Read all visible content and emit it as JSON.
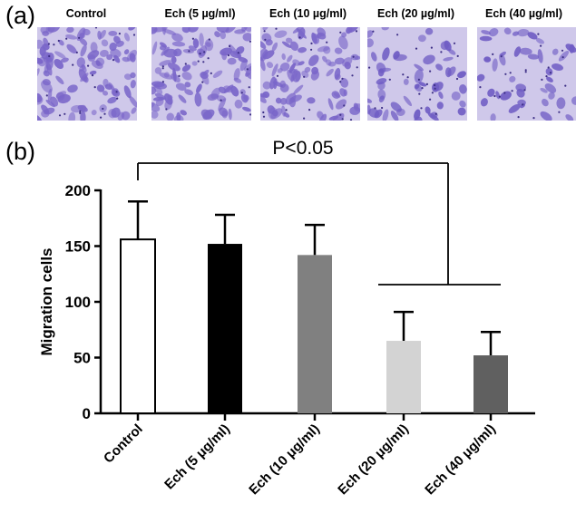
{
  "panel_labels": {
    "a": "(a)",
    "b": "(b)"
  },
  "micrographs": [
    {
      "title": "Control",
      "density": 1.0,
      "stain": "#7a66c9"
    },
    {
      "title": "Ech (5 µg/ml)",
      "density": 0.98,
      "stain": "#7a66c9"
    },
    {
      "title": "Ech (10 µg/ml)",
      "density": 0.92,
      "stain": "#7a66c9"
    },
    {
      "title": "Ech (20 µg/ml)",
      "density": 0.45,
      "stain": "#6f5cc4"
    },
    {
      "title": "Ech (40 µg/ml)",
      "density": 0.35,
      "stain": "#6f5cc4"
    }
  ],
  "chart_data": {
    "type": "bar",
    "categories": [
      "Control",
      "Ech (5 μg/ml)",
      "Ech (10 μg/ml)",
      "Ech (20 μg/ml)",
      "Ech (40 μg/ml)"
    ],
    "values": [
      156,
      152,
      142,
      65,
      52
    ],
    "error_upper": [
      190,
      178,
      169,
      91,
      73
    ],
    "bar_fills": [
      "#ffffff",
      "#000000",
      "#808080",
      "#d3d3d3",
      "#606060"
    ],
    "title": "",
    "xlabel": "",
    "ylabel": "Migration cells",
    "ylim": [
      0,
      200
    ],
    "yticks": [
      0,
      50,
      100,
      150,
      200
    ],
    "annotation": "P<0.05",
    "grid": false
  }
}
